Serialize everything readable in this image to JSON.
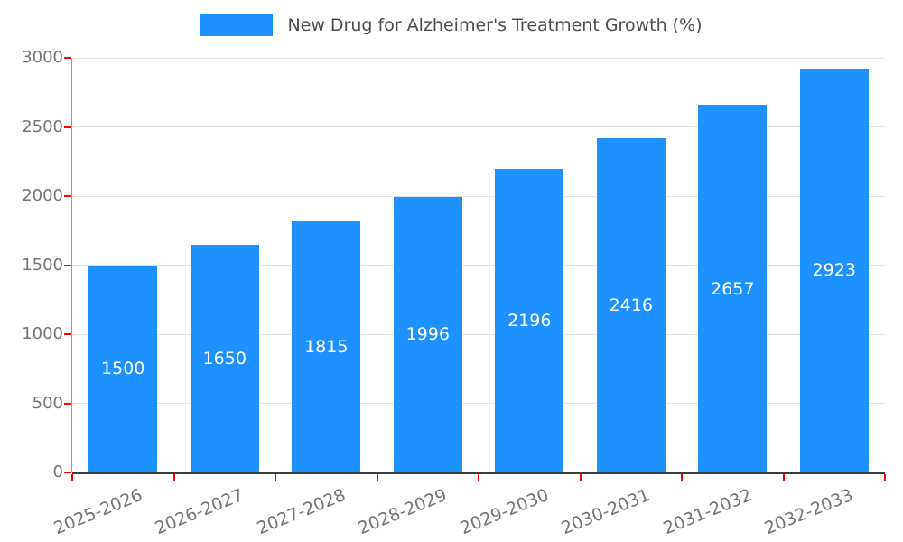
{
  "legend": {
    "label": "New Drug for Alzheimer's Treatment Growth (%)",
    "swatch_color": "#1E90FF"
  },
  "chart_data": {
    "type": "bar",
    "title": "New Drug for Alzheimer's Treatment Growth (%)",
    "categories": [
      "2025-2026",
      "2026-2027",
      "2027-2028",
      "2028-2029",
      "2029-2030",
      "2030-2031",
      "2031-2032",
      "2032-2033"
    ],
    "values": [
      1500,
      1650,
      1815,
      1996,
      2196,
      2416,
      2657,
      2923
    ],
    "xlabel": "",
    "ylabel": "",
    "ylim": [
      0,
      3000
    ],
    "yticks": [
      0,
      500,
      1000,
      1500,
      2000,
      2500,
      3000
    ],
    "grid": true,
    "legend_position": "top-center",
    "value_labels_inside_bars": true,
    "bar_color": "#1E90FF",
    "grid_color": "#e3e3e3",
    "axis_color": "#9a9a9a",
    "baseline_color": "#3b3b3b",
    "tick_color": "#ff0000",
    "label_color": "#757575",
    "value_label_color": "#ffffff",
    "title_color": "#4d4d4d"
  }
}
